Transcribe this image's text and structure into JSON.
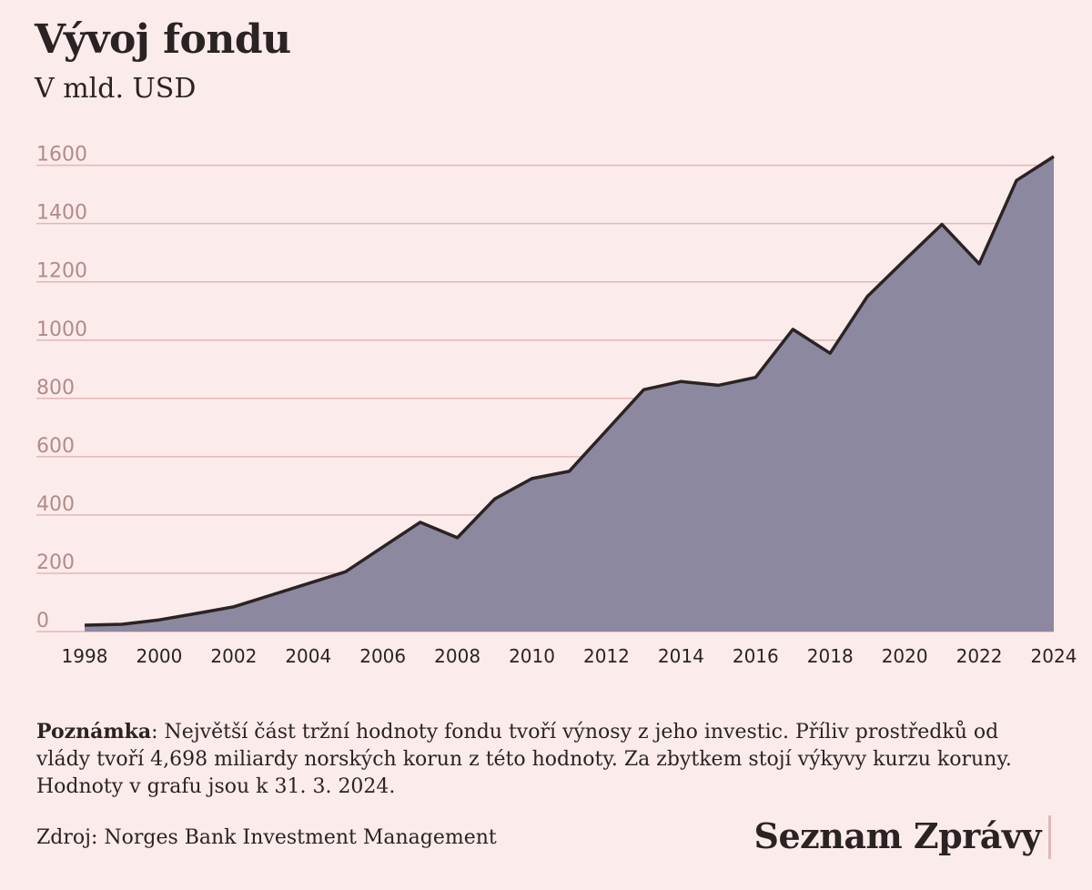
{
  "header": {
    "title": "Vývoj fondu",
    "subtitle": "V mld. USD"
  },
  "chart_data": {
    "type": "area",
    "x": [
      1998,
      1999,
      2000,
      2001,
      2002,
      2003,
      2004,
      2005,
      2006,
      2007,
      2008,
      2009,
      2010,
      2011,
      2012,
      2013,
      2014,
      2015,
      2016,
      2017,
      2018,
      2019,
      2020,
      2021,
      2022,
      2023,
      2024
    ],
    "values": [
      22,
      25,
      40,
      62,
      85,
      125,
      165,
      205,
      290,
      375,
      322,
      455,
      525,
      550,
      690,
      830,
      858,
      845,
      872,
      1037,
      955,
      1150,
      1275,
      1397,
      1262,
      1548,
      1630
    ],
    "ylim": [
      0,
      1650
    ],
    "yticks": [
      "0",
      "200",
      "400",
      "600",
      "800",
      "1000",
      "1200",
      "1400",
      "1600"
    ],
    "xticks": [
      "1998",
      "2000",
      "2002",
      "2004",
      "2006",
      "2008",
      "2010",
      "2012",
      "2014",
      "2016",
      "2018",
      "2020",
      "2022",
      "2024"
    ],
    "grid": true,
    "colors": {
      "fill": "#8c889f",
      "line": "#2b2323",
      "grid": "#e3b7b7"
    }
  },
  "footer": {
    "note_label": "Poznámka",
    "note_text": ": Největší část tržní hodnoty fondu tvoří výnosy z jeho investic. Příliv prostředků od vlády tvoří 4,698 miliardy norských korun z této hodnoty. Za zbytkem stojí výkyvy kurzu koruny. Hodnoty v grafu jsou k 31. 3. 2024.",
    "source": "Zdroj: Norges Bank Investment Management",
    "brand": "Seznam Zprávy"
  }
}
